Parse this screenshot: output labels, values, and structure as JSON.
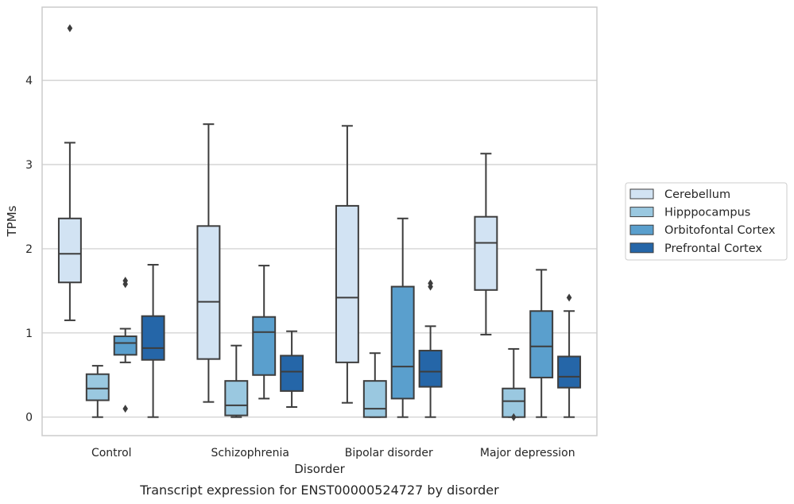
{
  "caption": "Transcript expression for ENST00000524727 by disorder",
  "chart_data": {
    "type": "box",
    "xlabel": "Disorder",
    "ylabel": "TPMs",
    "ylim": [
      -0.22,
      4.87
    ],
    "yticks": [
      0,
      1,
      2,
      3,
      4
    ],
    "grid": "horizontal",
    "legend_position": "right",
    "categories": [
      "Control",
      "Schizophrenia",
      "Bipolar disorder",
      "Major depression"
    ],
    "series": [
      {
        "name": "Cerebellum",
        "color": "#d2e3f3",
        "boxes": [
          {
            "whislo": 1.15,
            "q1": 1.6,
            "med": 1.94,
            "q3": 2.36,
            "whishi": 3.26,
            "fliers": [
              4.62
            ]
          },
          {
            "whislo": 0.18,
            "q1": 0.69,
            "med": 1.37,
            "q3": 2.27,
            "whishi": 3.48,
            "fliers": []
          },
          {
            "whislo": 0.17,
            "q1": 0.65,
            "med": 1.42,
            "q3": 2.51,
            "whishi": 3.46,
            "fliers": []
          },
          {
            "whislo": 0.98,
            "q1": 1.51,
            "med": 2.07,
            "q3": 2.38,
            "whishi": 3.13,
            "fliers": []
          }
        ]
      },
      {
        "name": "Hipppocampus",
        "color": "#9ac8e0",
        "boxes": [
          {
            "whislo": 0.0,
            "q1": 0.2,
            "med": 0.34,
            "q3": 0.51,
            "whishi": 0.61,
            "fliers": []
          },
          {
            "whislo": 0.0,
            "q1": 0.02,
            "med": 0.14,
            "q3": 0.43,
            "whishi": 0.85,
            "fliers": []
          },
          {
            "whislo": 0.0,
            "q1": 0.0,
            "med": 0.1,
            "q3": 0.43,
            "whishi": 0.76,
            "fliers": []
          },
          {
            "whislo": 0.0,
            "q1": 0.0,
            "med": 0.19,
            "q3": 0.34,
            "whishi": 0.81,
            "fliers": [
              0.0
            ]
          }
        ]
      },
      {
        "name": "Orbitofontal Cortex",
        "color": "#5a9fcd",
        "boxes": [
          {
            "whislo": 0.65,
            "q1": 0.74,
            "med": 0.88,
            "q3": 0.96,
            "whishi": 1.05,
            "fliers": [
              1.58,
              1.62,
              0.1
            ]
          },
          {
            "whislo": 0.22,
            "q1": 0.5,
            "med": 1.01,
            "q3": 1.19,
            "whishi": 1.8,
            "fliers": []
          },
          {
            "whislo": 0.0,
            "q1": 0.22,
            "med": 0.6,
            "q3": 1.55,
            "whishi": 2.36,
            "fliers": []
          },
          {
            "whislo": 0.0,
            "q1": 0.47,
            "med": 0.84,
            "q3": 1.26,
            "whishi": 1.75,
            "fliers": []
          }
        ]
      },
      {
        "name": "Prefrontal Cortex",
        "color": "#2566a8",
        "boxes": [
          {
            "whislo": 0.0,
            "q1": 0.68,
            "med": 0.82,
            "q3": 1.2,
            "whishi": 1.81,
            "fliers": []
          },
          {
            "whislo": 0.12,
            "q1": 0.31,
            "med": 0.54,
            "q3": 0.73,
            "whishi": 1.02,
            "fliers": []
          },
          {
            "whislo": 0.0,
            "q1": 0.36,
            "med": 0.54,
            "q3": 0.79,
            "whishi": 1.08,
            "fliers": [
              1.55,
              1.59
            ]
          },
          {
            "whislo": 0.0,
            "q1": 0.35,
            "med": 0.48,
            "q3": 0.72,
            "whishi": 1.26,
            "fliers": [
              1.42
            ]
          }
        ]
      }
    ]
  }
}
